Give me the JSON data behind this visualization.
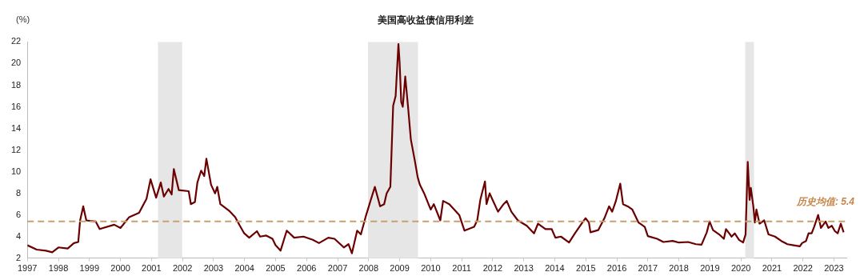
{
  "chart_data": {
    "type": "line",
    "title": "美国高收益债信用利差",
    "ylabel": "(%)",
    "x": [
      1997.0,
      1997.3,
      1997.6,
      1997.8,
      1998.0,
      1998.3,
      1998.5,
      1998.64,
      1998.7,
      1998.8,
      1998.9,
      1999.2,
      1999.33,
      1999.8,
      2000.0,
      2000.28,
      2000.6,
      2000.84,
      2000.97,
      2001.15,
      2001.3,
      2001.4,
      2001.55,
      2001.65,
      2001.72,
      2001.88,
      2002.2,
      2002.27,
      2002.4,
      2002.48,
      2002.6,
      2002.7,
      2002.77,
      2002.92,
      2003.05,
      2003.12,
      2003.22,
      2003.5,
      2003.7,
      2003.85,
      2003.99,
      2004.15,
      2004.4,
      2004.5,
      2004.7,
      2004.9,
      2005.0,
      2005.16,
      2005.3,
      2005.36,
      2005.6,
      2005.9,
      2006.2,
      2006.4,
      2006.7,
      2006.9,
      2007.2,
      2007.35,
      2007.46,
      2007.63,
      2007.75,
      2007.9,
      2008.07,
      2008.2,
      2008.37,
      2008.5,
      2008.58,
      2008.7,
      2008.79,
      2008.87,
      2008.96,
      2009.0,
      2009.05,
      2009.1,
      2009.18,
      2009.27,
      2009.36,
      2009.49,
      2009.58,
      2009.65,
      2009.79,
      2010.0,
      2010.1,
      2010.31,
      2010.4,
      2010.6,
      2010.92,
      2011.09,
      2011.4,
      2011.5,
      2011.6,
      2011.75,
      2011.8,
      2011.9,
      2012.17,
      2012.35,
      2012.45,
      2012.6,
      2012.81,
      2013.1,
      2013.33,
      2013.46,
      2013.7,
      2013.9,
      2014.02,
      2014.2,
      2014.46,
      2014.65,
      2014.89,
      2014.99,
      2015.1,
      2015.15,
      2015.4,
      2015.6,
      2015.75,
      2015.85,
      2015.97,
      2016.11,
      2016.2,
      2016.35,
      2016.5,
      2016.7,
      2016.9,
      2017.0,
      2017.3,
      2017.5,
      2017.8,
      2018.0,
      2018.3,
      2018.55,
      2018.73,
      2018.9,
      2018.99,
      2019.1,
      2019.3,
      2019.45,
      2019.52,
      2019.7,
      2019.8,
      2019.94,
      2020.07,
      2020.15,
      2020.22,
      2020.28,
      2020.32,
      2020.4,
      2020.45,
      2020.5,
      2020.6,
      2020.75,
      2020.89,
      2021.1,
      2021.3,
      2021.5,
      2021.7,
      2021.9,
      2021.97,
      2022.1,
      2022.18,
      2022.28,
      2022.36,
      2022.49,
      2022.58,
      2022.73,
      2022.82,
      2022.93,
      2023.03,
      2023.12,
      2023.22,
      2023.31
    ],
    "series": [
      {
        "color": "#6b0000",
        "values": [
          3.2,
          2.8,
          2.7,
          2.55,
          3.0,
          2.9,
          3.4,
          3.5,
          5.5,
          6.8,
          5.5,
          5.4,
          4.7,
          5.1,
          4.8,
          5.8,
          6.2,
          7.5,
          9.3,
          7.6,
          9.0,
          7.7,
          8.4,
          7.9,
          10.25,
          8.3,
          8.2,
          7.0,
          7.2,
          9.0,
          10.1,
          9.6,
          11.2,
          8.8,
          8.0,
          8.6,
          7.0,
          6.4,
          5.8,
          5.0,
          4.3,
          3.9,
          4.5,
          4.0,
          4.1,
          3.8,
          3.2,
          2.7,
          4.0,
          4.55,
          3.9,
          4.0,
          3.7,
          3.4,
          3.9,
          3.8,
          3.0,
          3.3,
          2.45,
          4.55,
          4.2,
          5.8,
          7.4,
          8.6,
          6.8,
          7.0,
          8.0,
          8.6,
          16.1,
          17.0,
          21.8,
          20.0,
          16.45,
          16.0,
          18.8,
          16.0,
          13.0,
          11.0,
          9.5,
          8.8,
          8.0,
          6.5,
          7.0,
          5.5,
          7.3,
          7.0,
          6.0,
          4.55,
          4.9,
          5.5,
          7.4,
          9.1,
          7.0,
          8.0,
          6.3,
          7.0,
          7.3,
          6.3,
          5.5,
          5.0,
          4.3,
          5.2,
          4.7,
          4.7,
          3.9,
          4.0,
          3.45,
          4.3,
          5.3,
          5.7,
          5.3,
          4.4,
          4.6,
          5.7,
          6.8,
          6.3,
          7.3,
          8.9,
          7.0,
          6.8,
          6.5,
          5.3,
          4.9,
          4.05,
          3.8,
          3.5,
          3.6,
          3.45,
          3.5,
          3.3,
          3.25,
          4.4,
          5.4,
          4.6,
          4.2,
          3.8,
          4.7,
          4.0,
          4.3,
          3.7,
          3.45,
          4.2,
          10.9,
          7.4,
          8.5,
          6.8,
          5.3,
          6.5,
          5.2,
          5.5,
          4.2,
          4.0,
          3.6,
          3.3,
          3.2,
          3.1,
          3.4,
          3.6,
          4.3,
          4.3,
          4.9,
          6.0,
          4.8,
          5.4,
          4.8,
          5.0,
          4.5,
          4.3,
          5.2,
          4.4
        ]
      }
    ],
    "xlim": [
      1997,
      2023.4
    ],
    "xticks": [
      1997,
      1998,
      1999,
      2000,
      2001,
      2002,
      2003,
      2004,
      2005,
      2006,
      2007,
      2008,
      2009,
      2010,
      2011,
      2012,
      2013,
      2014,
      2015,
      2016,
      2017,
      2018,
      2019,
      2020,
      2021,
      2022,
      2023
    ],
    "ylim": [
      2,
      22
    ],
    "yticks": [
      2,
      4,
      6,
      8,
      10,
      12,
      14,
      16,
      18,
      20,
      22
    ],
    "grid": false,
    "legend": false,
    "marker": "none",
    "line_style": "solid",
    "bands": [
      {
        "axis": "x",
        "from": 2001.21,
        "to": 2001.99,
        "color": "#e6e6e6"
      },
      {
        "axis": "x",
        "from": 2007.98,
        "to": 2009.59,
        "color": "#e6e6e6"
      },
      {
        "axis": "x",
        "from": 2020.14,
        "to": 2020.42,
        "color": "#e6e6e6"
      }
    ],
    "ref_lines": [
      {
        "axis": "y",
        "value": 5.4,
        "label": "历史均值: 5.4",
        "color": "#c8a06e",
        "line_style": "dashed"
      }
    ]
  }
}
